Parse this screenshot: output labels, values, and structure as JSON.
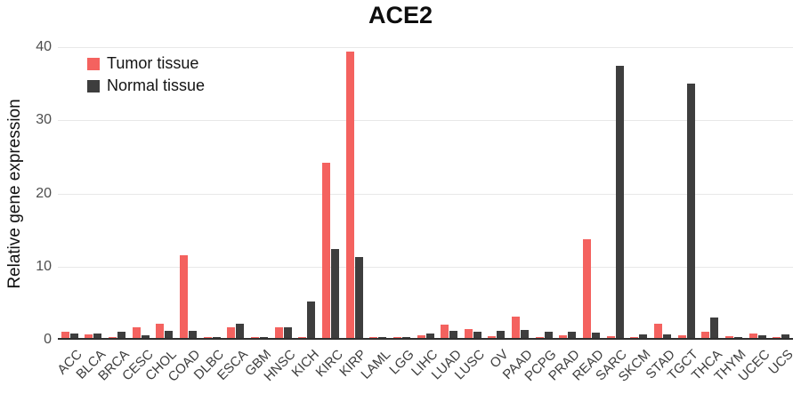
{
  "title": "ACE2",
  "ylabel": "Relative gene expression",
  "colors": {
    "tumor": "#f4625f",
    "normal": "#3e3e3e",
    "grid": "#e8e8e8",
    "axis": "#2f2f2f"
  },
  "chart_data": {
    "type": "bar",
    "title": "ACE2",
    "xlabel": "",
    "ylabel": "Relative gene expression",
    "ylim": [
      0,
      40
    ],
    "yticks": [
      0,
      10,
      20,
      30,
      40
    ],
    "grid": true,
    "legend_position": "top-left",
    "categories": [
      "ACC",
      "BLCA",
      "BRCA",
      "CESC",
      "CHOL",
      "COAD",
      "DLBC",
      "ESCA",
      "GBM",
      "HNSC",
      "KICH",
      "KIRC",
      "KIRP",
      "LAML",
      "LGG",
      "LIHC",
      "LUAD",
      "LUSC",
      "OV",
      "PAAD",
      "PCPG",
      "PRAD",
      "READ",
      "SARC",
      "SKCM",
      "STAD",
      "TGCT",
      "THCA",
      "THYM",
      "UCEC",
      "UCS"
    ],
    "series": [
      {
        "name": "Tumor tissue",
        "color": "#f4625f",
        "values": [
          0.9,
          0.5,
          0.15,
          1.4,
          2.0,
          11.3,
          0.05,
          1.5,
          0.1,
          1.4,
          0.15,
          24.0,
          39.2,
          0.05,
          0.05,
          0.35,
          1.8,
          1.25,
          0.3,
          2.9,
          0.1,
          0.4,
          13.5,
          0.2,
          0.1,
          1.9,
          0.4,
          0.85,
          0.3,
          0.6,
          0.1
        ]
      },
      {
        "name": "Normal tissue",
        "color": "#3e3e3e",
        "values": [
          0.55,
          0.65,
          0.9,
          0.4,
          1.0,
          1.0,
          0.05,
          1.9,
          0.15,
          1.5,
          5.0,
          12.2,
          11.1,
          0.05,
          0.1,
          0.65,
          1.0,
          0.9,
          1.0,
          1.05,
          0.9,
          0.8,
          0.7,
          37.2,
          0.5,
          0.5,
          34.8,
          2.8,
          0.15,
          0.35,
          0.45
        ]
      }
    ]
  }
}
